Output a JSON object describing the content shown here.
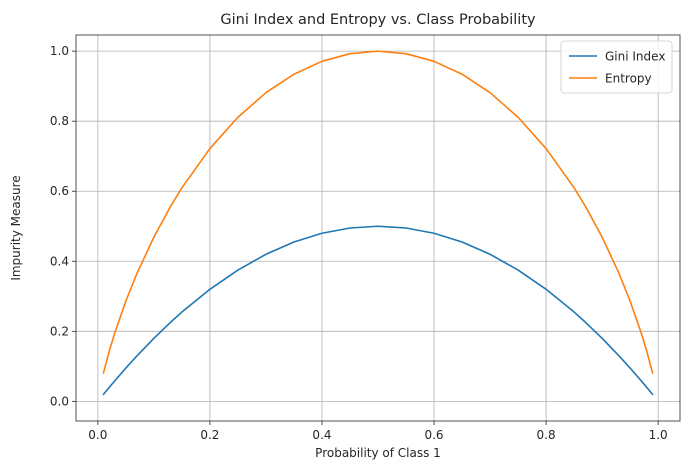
{
  "chart_data": {
    "type": "line",
    "title": "Gini Index and Entropy vs. Class Probability",
    "xlabel": "Probability of Class 1",
    "ylabel": "Impurity Measure",
    "xlim": [
      -0.039,
      1.039
    ],
    "ylim": [
      -0.0561,
      1.0461
    ],
    "xticks": [
      0.0,
      0.2,
      0.4,
      0.6,
      0.8,
      1.0
    ],
    "xtick_labels": [
      "0.0",
      "0.2",
      "0.4",
      "0.6",
      "0.8",
      "1.0"
    ],
    "yticks": [
      0.0,
      0.2,
      0.4,
      0.6,
      0.8,
      1.0
    ],
    "ytick_labels": [
      "0.0",
      "0.2",
      "0.4",
      "0.6",
      "0.8",
      "1.0"
    ],
    "grid": true,
    "legend_position": "top-right",
    "x": [
      0.01,
      0.02,
      0.03,
      0.05,
      0.07,
      0.1,
      0.13,
      0.15,
      0.2,
      0.25,
      0.3,
      0.35,
      0.4,
      0.45,
      0.5,
      0.55,
      0.6,
      0.65,
      0.7,
      0.75,
      0.8,
      0.85,
      0.87,
      0.9,
      0.93,
      0.95,
      0.97,
      0.98,
      0.99
    ],
    "series": [
      {
        "name": "Gini Index",
        "color": "#1f77b4",
        "values": [
          0.0198,
          0.0392,
          0.0582,
          0.095,
          0.1302,
          0.18,
          0.2262,
          0.255,
          0.32,
          0.375,
          0.42,
          0.455,
          0.48,
          0.495,
          0.5,
          0.495,
          0.48,
          0.455,
          0.42,
          0.375,
          0.32,
          0.255,
          0.2262,
          0.18,
          0.1302,
          0.095,
          0.0582,
          0.0392,
          0.0198
        ]
      },
      {
        "name": "Entropy",
        "color": "#ff7f0e",
        "values": [
          0.0808,
          0.1414,
          0.1944,
          0.2864,
          0.3659,
          0.469,
          0.5574,
          0.6098,
          0.7219,
          0.8113,
          0.8813,
          0.9341,
          0.971,
          0.9928,
          1.0,
          0.9928,
          0.971,
          0.9341,
          0.8813,
          0.8113,
          0.7219,
          0.6098,
          0.5574,
          0.469,
          0.3659,
          0.2864,
          0.1944,
          0.1414,
          0.0808
        ]
      }
    ]
  }
}
